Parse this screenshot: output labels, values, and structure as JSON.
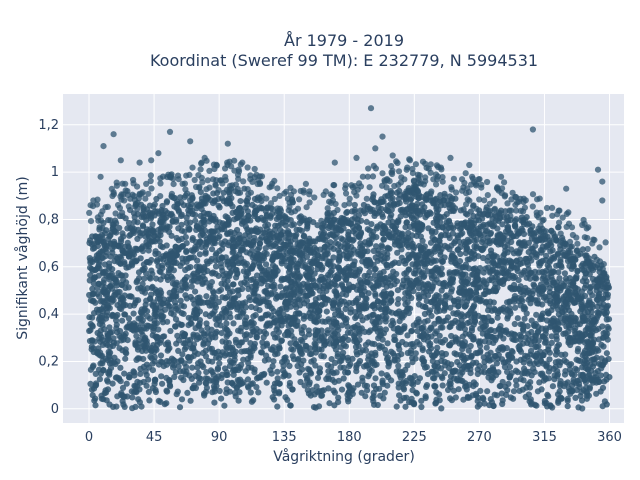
{
  "chart_data": {
    "type": "scatter",
    "title": "År 1979 - 2019",
    "subtitle": "Koordinat (Sweref 99 TM): E 232779, N 5994531",
    "xlabel": "Vågriktning (grader)",
    "ylabel": "Signifikant våghöjd (m)",
    "xlim": [
      -18,
      370
    ],
    "ylim": [
      -0.06,
      1.33
    ],
    "x_ticks": [
      0,
      45,
      90,
      135,
      180,
      225,
      270,
      315,
      360
    ],
    "y_ticks": [
      0,
      0.2,
      0.4,
      0.6,
      0.8,
      1,
      1.2
    ],
    "y_tick_labels": [
      "0",
      "0,2",
      "0,4",
      "0,6",
      "0,8",
      "1",
      "1,2"
    ],
    "grid": true,
    "legend": "none",
    "colors": {
      "marker": "#2f5570",
      "plot_bg": "#e5e8f1",
      "grid": "#ffffff",
      "text": "#2a3f5f"
    },
    "envelope": {
      "x": [
        0,
        20,
        45,
        60,
        90,
        110,
        135,
        160,
        180,
        200,
        225,
        250,
        270,
        300,
        315,
        330,
        345,
        360
      ],
      "upper": [
        0.72,
        0.82,
        0.86,
        0.88,
        0.92,
        0.9,
        0.8,
        0.78,
        0.84,
        0.9,
        0.92,
        0.88,
        0.84,
        0.8,
        0.74,
        0.7,
        0.66,
        0.55
      ]
    },
    "extreme_points": [
      {
        "x": 10,
        "y": 1.11
      },
      {
        "x": 17,
        "y": 1.16
      },
      {
        "x": 8,
        "y": 0.98
      },
      {
        "x": 22,
        "y": 1.05
      },
      {
        "x": 35,
        "y": 1.04
      },
      {
        "x": 43,
        "y": 1.05
      },
      {
        "x": 48,
        "y": 1.08
      },
      {
        "x": 56,
        "y": 1.17
      },
      {
        "x": 70,
        "y": 1.13
      },
      {
        "x": 80,
        "y": 1.06
      },
      {
        "x": 96,
        "y": 1.12
      },
      {
        "x": 106,
        "y": 1.04
      },
      {
        "x": 170,
        "y": 1.04
      },
      {
        "x": 195,
        "y": 1.27
      },
      {
        "x": 198,
        "y": 1.1
      },
      {
        "x": 203,
        "y": 1.15
      },
      {
        "x": 210,
        "y": 1.07
      },
      {
        "x": 222,
        "y": 1.05
      },
      {
        "x": 250,
        "y": 1.06
      },
      {
        "x": 263,
        "y": 1.03
      },
      {
        "x": 307,
        "y": 1.18
      },
      {
        "x": 352,
        "y": 1.01
      },
      {
        "x": 355,
        "y": 0.96
      },
      {
        "x": 355,
        "y": 0.88
      },
      {
        "x": 25,
        "y": 0.95
      },
      {
        "x": 62,
        "y": 0.97
      },
      {
        "x": 150,
        "y": 0.95
      },
      {
        "x": 185,
        "y": 1.06
      },
      {
        "x": 240,
        "y": 0.99
      },
      {
        "x": 285,
        "y": 0.98
      },
      {
        "x": 330,
        "y": 0.93
      },
      {
        "x": 3,
        "y": 0.88
      }
    ]
  }
}
